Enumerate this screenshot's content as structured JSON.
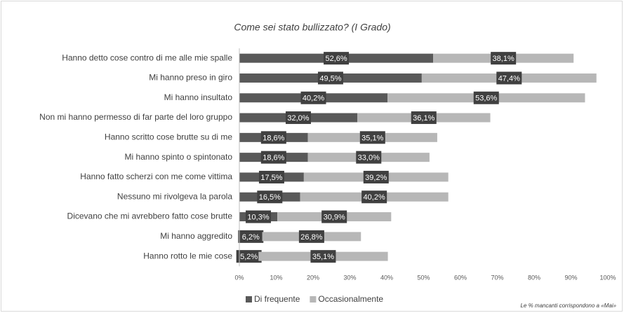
{
  "chart_data": {
    "type": "stacked-barh",
    "title": "Come sei stato bullizzato? (I Grado)",
    "categories": [
      "Hanno detto cose contro di me alle mie spalle",
      "Mi hanno preso in giro",
      "Mi hanno insultato",
      "Non mi hanno permesso di far parte del loro gruppo",
      "Hanno scritto cose brutte su di me",
      "Mi hanno spinto o spintonato",
      "Hanno fatto scherzi con me come vittima",
      "Nessuno mi rivolgeva la parola",
      "Dicevano che mi avrebbero fatto cose brutte",
      "Mi hanno aggredito",
      "Hanno rotto le mie cose"
    ],
    "series": [
      {
        "name": "Di frequente",
        "color": "#595959",
        "values": [
          52.6,
          49.5,
          40.2,
          32.0,
          18.6,
          18.6,
          17.5,
          16.5,
          10.3,
          6.2,
          5.2
        ],
        "value_labels": [
          "52,6%",
          "49,5%",
          "40,2%",
          "32,0%",
          "18,6%",
          "18,6%",
          "17,5%",
          "16,5%",
          "10,3%",
          "6,2%",
          "5,2%"
        ]
      },
      {
        "name": "Occasionalmente",
        "color": "#b7b7b7",
        "values": [
          38.1,
          47.4,
          53.6,
          36.1,
          35.1,
          33.0,
          39.2,
          40.2,
          30.9,
          26.8,
          35.1
        ],
        "value_labels": [
          "38,1%",
          "47,4%",
          "53,6%",
          "36,1%",
          "35,1%",
          "33,0%",
          "39,2%",
          "40,2%",
          "30,9%",
          "26,8%",
          "35,1%"
        ]
      }
    ],
    "xlim": [
      0,
      100
    ],
    "xticks": [
      {
        "value": 0,
        "label": "0%"
      },
      {
        "value": 10,
        "label": "10%"
      },
      {
        "value": 20,
        "label": "20%"
      },
      {
        "value": 30,
        "label": "30%"
      },
      {
        "value": 40,
        "label": "40%"
      },
      {
        "value": 50,
        "label": "50%"
      },
      {
        "value": 60,
        "label": "60%"
      },
      {
        "value": 70,
        "label": "70%"
      },
      {
        "value": 80,
        "label": "80%"
      },
      {
        "value": 90,
        "label": "90%"
      },
      {
        "value": 100,
        "label": "100%"
      }
    ],
    "grid": false,
    "legend": "bottom",
    "note": "Le % mancanti corrispondono a «Mai»"
  }
}
